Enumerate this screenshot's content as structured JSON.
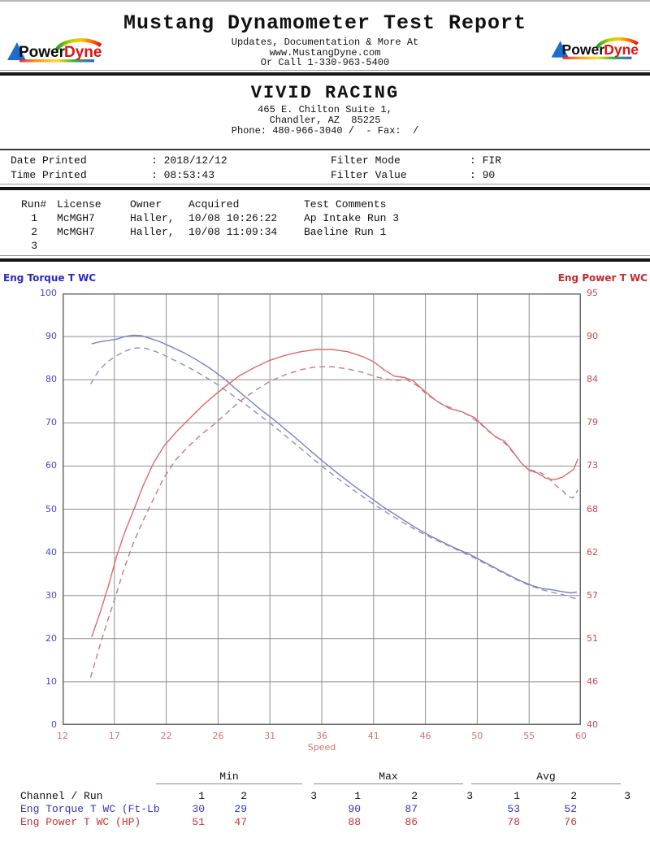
{
  "header": {
    "title": "Mustang Dynamometer Test Report",
    "sub1": "Updates, Documentation & More At",
    "sub2": "www.MustangDyne.com",
    "sub3": "Or Call 1-330-963-5400",
    "logo": {
      "power": "Power",
      "dyne": "Dyne"
    }
  },
  "dealer": {
    "name": "VIVID RACING",
    "address1": "465 E. Chilton Suite 1,",
    "address2": "Chandler, AZ  85225",
    "phone": "Phone: 480-966-3040 /  - Fax:  /"
  },
  "print_info": {
    "separator": ":",
    "date_label": "Date Printed",
    "date_value": "2018/12/12",
    "time_label": "Time Printed",
    "time_value": "08:53:43",
    "filter_mode_label": "Filter Mode",
    "filter_mode_value": "FIR",
    "filter_value_label": "Filter Value",
    "filter_value_value": "90"
  },
  "runs": {
    "headers": {
      "run": "Run#",
      "license": "License",
      "owner": "Owner",
      "acquired": "Acquired",
      "comments": "Test Comments"
    },
    "rows": [
      {
        "run": "1",
        "license": "McMGH7",
        "owner": "Haller,",
        "acquired": "10/08 10:26:22",
        "comments": "Ap Intake Run 3"
      },
      {
        "run": "2",
        "license": "McMGH7",
        "owner": "Haller,",
        "acquired": "10/08 11:09:34",
        "comments": "Baeline Run 1"
      },
      {
        "run": "3",
        "license": "",
        "owner": "",
        "acquired": "",
        "comments": ""
      }
    ]
  },
  "chart_data": {
    "type": "line",
    "x_axis": {
      "label": "Speed",
      "ticks": [
        12,
        17,
        22,
        26,
        31,
        36,
        41,
        46,
        50,
        55,
        60
      ],
      "color": "#d17070"
    },
    "y_left": {
      "label": "Eng Torque T WC",
      "ticks": [
        100,
        90,
        80,
        70,
        60,
        50,
        40,
        30,
        20,
        10,
        0
      ],
      "title_color": "#2a2ac4",
      "tick_color": "#4646c8"
    },
    "y_right": {
      "label": "Eng Power T WC",
      "ticks": [
        95,
        90,
        84,
        79,
        73,
        68,
        62,
        57,
        51,
        46,
        40
      ],
      "title_color": "#c42a2a",
      "tick_color": "#c84848"
    },
    "grid": {
      "line_color": "#8f8f8f",
      "border_color": "#6a6a6a"
    },
    "series": [
      {
        "name": "Eng Torque T WC Run 1",
        "axis": "left",
        "style": "solid",
        "color": "#7b7bd0",
        "points": [
          [
            14.8,
            88.3
          ],
          [
            15.6,
            88.8
          ],
          [
            16.4,
            89.1
          ],
          [
            17.2,
            89.4
          ],
          [
            18.0,
            90.0
          ],
          [
            18.8,
            90.3
          ],
          [
            19.6,
            90.2
          ],
          [
            20.4,
            89.6
          ],
          [
            21.4,
            88.8
          ],
          [
            22.4,
            87.6
          ],
          [
            23.4,
            86.2
          ],
          [
            24.4,
            84.5
          ],
          [
            25.4,
            82.6
          ],
          [
            26.6,
            80.2
          ],
          [
            27.6,
            78.1
          ],
          [
            28.8,
            75.7
          ],
          [
            30.0,
            73.3
          ],
          [
            31.5,
            70.5
          ],
          [
            33.0,
            67.5
          ],
          [
            34.5,
            64.4
          ],
          [
            36.0,
            61.3
          ],
          [
            37.5,
            58.4
          ],
          [
            39.0,
            55.6
          ],
          [
            40.5,
            53.0
          ],
          [
            42.0,
            50.4
          ],
          [
            43.5,
            48.1
          ],
          [
            45.0,
            45.8
          ],
          [
            46.5,
            43.6
          ],
          [
            48.0,
            41.4
          ],
          [
            49.5,
            39.4
          ],
          [
            51.0,
            37.3
          ],
          [
            52.5,
            35.4
          ],
          [
            54.0,
            33.6
          ],
          [
            55.3,
            32.3
          ],
          [
            56.3,
            31.6
          ],
          [
            57.3,
            31.3
          ],
          [
            58.2,
            30.9
          ],
          [
            59.0,
            30.6
          ],
          [
            59.6,
            30.8
          ]
        ]
      },
      {
        "name": "Eng Torque T WC Run 2",
        "axis": "left",
        "style": "dashed",
        "color": "#8f8fbd",
        "points": [
          [
            14.7,
            79.0
          ],
          [
            15.4,
            81.8
          ],
          [
            16.2,
            83.9
          ],
          [
            17.0,
            85.3
          ],
          [
            18.0,
            86.6
          ],
          [
            18.9,
            87.3
          ],
          [
            19.8,
            87.4
          ],
          [
            20.7,
            86.8
          ],
          [
            21.7,
            85.8
          ],
          [
            22.7,
            84.4
          ],
          [
            23.7,
            82.9
          ],
          [
            24.7,
            81.2
          ],
          [
            25.7,
            79.4
          ],
          [
            26.7,
            77.6
          ],
          [
            27.7,
            75.9
          ],
          [
            28.9,
            73.8
          ],
          [
            30.0,
            71.8
          ],
          [
            31.5,
            69.0
          ],
          [
            33.0,
            66.0
          ],
          [
            34.5,
            63.0
          ],
          [
            36.0,
            60.0
          ],
          [
            37.5,
            57.2
          ],
          [
            39.0,
            54.5
          ],
          [
            40.5,
            52.0
          ],
          [
            42.0,
            49.6
          ],
          [
            43.5,
            47.4
          ],
          [
            45.0,
            45.3
          ],
          [
            46.5,
            43.3
          ],
          [
            48.0,
            41.2
          ],
          [
            49.5,
            39.1
          ],
          [
            51.0,
            37.1
          ],
          [
            52.5,
            35.2
          ],
          [
            54.0,
            33.4
          ],
          [
            55.3,
            32.1
          ],
          [
            56.3,
            31.3
          ],
          [
            57.3,
            30.7
          ],
          [
            58.2,
            30.2
          ],
          [
            59.0,
            29.6
          ],
          [
            59.6,
            29.2
          ]
        ]
      },
      {
        "name": "Eng Power T WC Run 1",
        "axis": "right",
        "style": "solid",
        "color": "#e06868",
        "points": [
          [
            14.8,
            51.2
          ],
          [
            15.6,
            54.5
          ],
          [
            16.4,
            58.0
          ],
          [
            17.2,
            61.5
          ],
          [
            18.0,
            64.8
          ],
          [
            18.9,
            68.0
          ],
          [
            19.8,
            70.8
          ],
          [
            20.8,
            73.5
          ],
          [
            21.8,
            75.8
          ],
          [
            22.8,
            77.8
          ],
          [
            23.8,
            79.5
          ],
          [
            24.8,
            81.0
          ],
          [
            25.8,
            82.3
          ],
          [
            26.8,
            83.3
          ],
          [
            28.0,
            84.5
          ],
          [
            29.5,
            85.7
          ],
          [
            31.0,
            86.7
          ],
          [
            32.5,
            87.4
          ],
          [
            34.0,
            87.9
          ],
          [
            35.5,
            88.2
          ],
          [
            37.0,
            88.2
          ],
          [
            38.5,
            87.9
          ],
          [
            40.0,
            87.2
          ],
          [
            41.0,
            86.5
          ],
          [
            42.0,
            85.4
          ],
          [
            43.0,
            84.5
          ],
          [
            44.0,
            84.3
          ],
          [
            44.8,
            83.9
          ],
          [
            45.8,
            82.8
          ],
          [
            46.8,
            81.6
          ],
          [
            47.8,
            80.7
          ],
          [
            48.8,
            80.3
          ],
          [
            49.8,
            79.6
          ],
          [
            50.8,
            78.3
          ],
          [
            51.8,
            77.0
          ],
          [
            52.6,
            76.5
          ],
          [
            53.4,
            75.1
          ],
          [
            54.2,
            73.5
          ],
          [
            55.0,
            72.5
          ],
          [
            55.8,
            72.2
          ],
          [
            56.6,
            71.6
          ],
          [
            57.4,
            71.4
          ],
          [
            58.2,
            71.7
          ],
          [
            58.8,
            72.2
          ],
          [
            59.3,
            72.6
          ],
          [
            59.7,
            74.0
          ]
        ]
      },
      {
        "name": "Eng Power T WC Run 2",
        "axis": "right",
        "style": "dashed",
        "color": "#c27a82",
        "points": [
          [
            14.7,
            46.5
          ],
          [
            15.5,
            49.8
          ],
          [
            16.3,
            53.3
          ],
          [
            17.1,
            56.8
          ],
          [
            17.9,
            60.0
          ],
          [
            18.8,
            63.2
          ],
          [
            19.7,
            66.2
          ],
          [
            20.7,
            69.0
          ],
          [
            21.7,
            71.5
          ],
          [
            22.7,
            73.8
          ],
          [
            23.7,
            75.7
          ],
          [
            24.7,
            77.4
          ],
          [
            25.7,
            78.8
          ],
          [
            26.7,
            80.0
          ],
          [
            28.0,
            81.4
          ],
          [
            29.5,
            82.7
          ],
          [
            31.0,
            83.8
          ],
          [
            32.5,
            84.7
          ],
          [
            34.0,
            85.4
          ],
          [
            35.5,
            85.8
          ],
          [
            37.0,
            85.8
          ],
          [
            38.5,
            85.5
          ],
          [
            40.0,
            85.0
          ],
          [
            41.5,
            84.3
          ],
          [
            43.0,
            83.9
          ],
          [
            44.2,
            84.0
          ],
          [
            45.2,
            83.3
          ],
          [
            46.2,
            82.2
          ],
          [
            47.2,
            81.2
          ],
          [
            48.2,
            80.6
          ],
          [
            49.2,
            80.0
          ],
          [
            50.2,
            79.0
          ],
          [
            51.2,
            77.7
          ],
          [
            52.0,
            76.9
          ],
          [
            52.8,
            76.0
          ],
          [
            53.6,
            74.6
          ],
          [
            54.4,
            73.2
          ],
          [
            55.2,
            72.5
          ],
          [
            56.0,
            72.3
          ],
          [
            56.8,
            71.7
          ],
          [
            57.6,
            70.7
          ],
          [
            58.2,
            70.2
          ],
          [
            58.7,
            69.5
          ],
          [
            59.2,
            69.3
          ],
          [
            59.7,
            70.2
          ]
        ]
      }
    ]
  },
  "stats": {
    "group_headers": [
      "Min",
      "Max",
      "Avg"
    ],
    "row_header": "Channel / Run",
    "run_numbers": [
      "1",
      "2",
      "3",
      "1",
      "2",
      "3",
      "1",
      "2",
      "3"
    ],
    "channels": [
      {
        "label": "Eng Torque T WC (Ft-Lb",
        "color": "#3434bb",
        "values": [
          "30",
          "29",
          "",
          "90",
          "87",
          "",
          "53",
          "52",
          ""
        ]
      },
      {
        "label": "Eng Power T WC (HP)",
        "color": "#c83434",
        "values": [
          "51",
          "47",
          "",
          "88",
          "86",
          "",
          "78",
          "76",
          ""
        ]
      }
    ]
  }
}
